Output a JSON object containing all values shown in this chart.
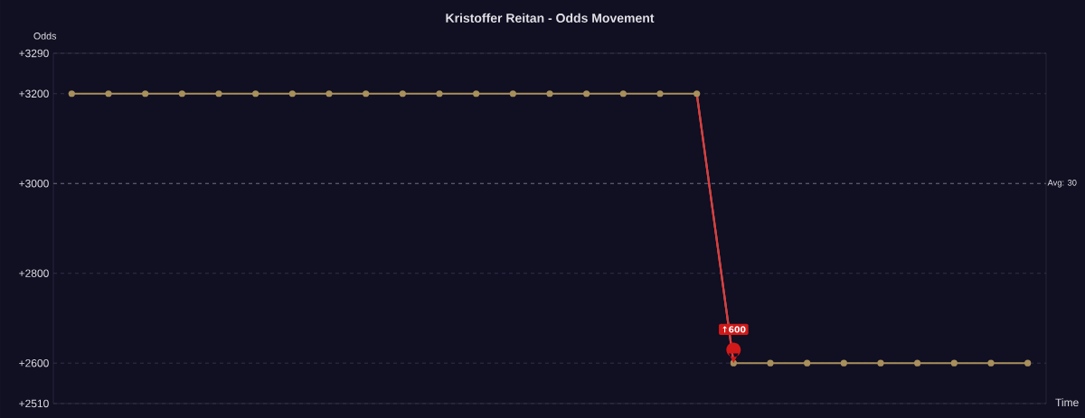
{
  "chart_data": {
    "type": "line",
    "title": "Kristoffer Reitan - Odds Movement",
    "xlabel": "Time",
    "ylabel": "Odds",
    "categories": [
      null,
      null,
      null,
      null,
      null,
      null,
      null,
      null,
      null,
      null,
      null,
      null,
      null,
      null,
      null,
      null,
      null,
      null,
      null,
      null,
      null,
      null,
      null,
      null,
      null,
      null,
      null
    ],
    "series": [
      {
        "color": "#a8905c",
        "values": [
          3200,
          3200,
          3200,
          3200,
          3200,
          3200,
          3200,
          3200,
          3200,
          3200,
          3200,
          3200,
          3200,
          3200,
          3200,
          3200,
          3200,
          3200,
          2600,
          2600,
          2600,
          2600,
          2600,
          2600,
          2600,
          2600,
          2600
        ]
      },
      {
        "type": "line",
        "marker": "none",
        "color": "#e0393e",
        "values": [
          null,
          null,
          null,
          null,
          null,
          null,
          null,
          null,
          null,
          null,
          null,
          null,
          null,
          null,
          null,
          null,
          null,
          3200,
          2600,
          null,
          null,
          null,
          null,
          null,
          null,
          null,
          null
        ]
      }
    ],
    "ylim": [
      2510,
      3290
    ],
    "yticks": [
      {
        "value": 2510,
        "label": "+2510"
      },
      {
        "value": 2600,
        "label": "+2600"
      },
      {
        "value": 2800,
        "label": "+2800"
      },
      {
        "value": 3000,
        "label": "+3000"
      },
      {
        "value": 3200,
        "label": "+3200"
      },
      {
        "value": 3290,
        "label": "+3290"
      }
    ],
    "ref_lines": [
      {
        "axis": "y",
        "value": 3000,
        "color": "#6a6a80",
        "line_style": "dashed"
      }
    ],
    "annotations": [
      "↑600",
      "Avg: 30"
    ],
    "grid": "y",
    "legend": false,
    "marker": "circle",
    "line_style": "solid"
  }
}
